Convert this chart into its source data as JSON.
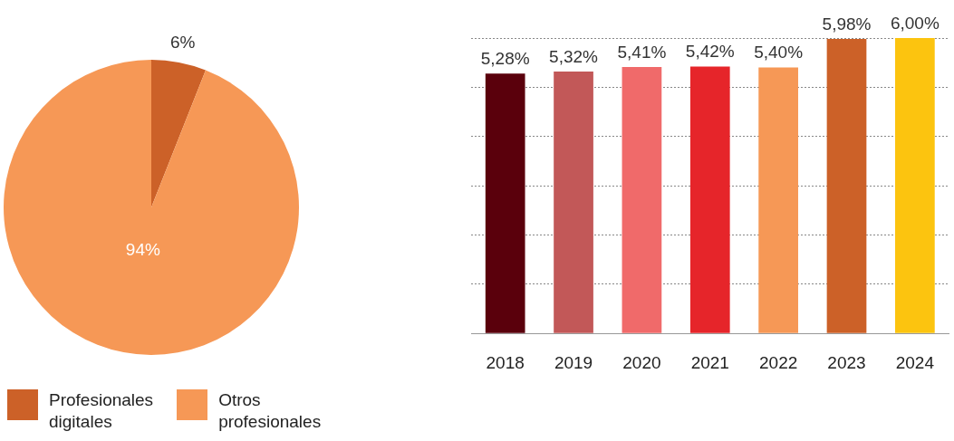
{
  "chart_data": [
    {
      "type": "pie",
      "categories": [
        "Profesionales digitales",
        "Otros profesionales"
      ],
      "values": [
        6,
        94
      ],
      "colors": [
        "#cc6128",
        "#f69856"
      ],
      "value_labels": [
        "6%",
        "94%"
      ],
      "legend": "bottom left"
    },
    {
      "type": "bar",
      "categories": [
        "2018",
        "2019",
        "2020",
        "2021",
        "2022",
        "2023",
        "2024"
      ],
      "values": [
        5.28,
        5.32,
        5.41,
        5.42,
        5.4,
        5.98,
        6.0
      ],
      "colors": [
        "#5a000c",
        "#c25858",
        "#f06a6a",
        "#e6252a",
        "#f69856",
        "#cc6128",
        "#fcc40f"
      ],
      "value_labels": [
        "5,28%",
        "5,32%",
        "5,41%",
        "5,42%",
        "5,40%",
        "5,98%",
        "6,00%"
      ],
      "ylim": [
        0,
        6
      ],
      "yticks": [
        {
          "value": 0,
          "label": null
        },
        {
          "value": 1,
          "label": null
        },
        {
          "value": 2,
          "label": null
        },
        {
          "value": 3,
          "label": null
        },
        {
          "value": 4,
          "label": null
        },
        {
          "value": 5,
          "label": null
        },
        {
          "value": 6,
          "label": null
        }
      ],
      "grid": "y",
      "tick_labels": "x"
    }
  ]
}
